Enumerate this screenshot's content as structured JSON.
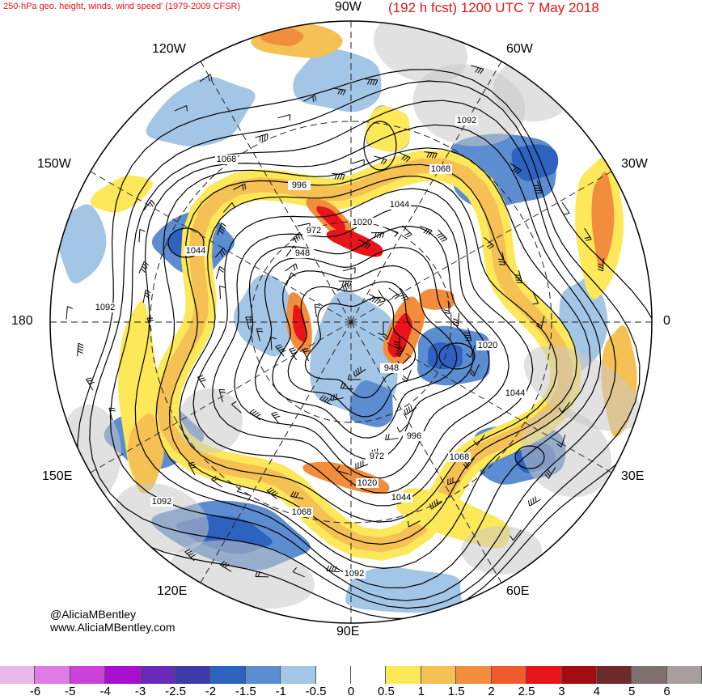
{
  "header": {
    "title_left": "250-hPa geo. height, winds, wind speed' (1979-2009 CFSR)",
    "title_right": "(192 h fcst) 1200 UTC 7 May 2018"
  },
  "longitude_labels": {
    "lon_90w": "90W",
    "lon_120w": "120W",
    "lon_60w": "60W",
    "lon_150w": "150W",
    "lon_30w": "30W",
    "lon_180": "180",
    "lon_0": "0",
    "lon_150e": "150E",
    "lon_30e": "30E",
    "lon_120e": "120E",
    "lon_60e": "60E",
    "lon_90e": "90E"
  },
  "contour_labels": [
    "1068",
    "996",
    "972",
    "948",
    "1020",
    "1044",
    "1092",
    "1068",
    "1044",
    "1092",
    "1020",
    "1044",
    "948",
    "996",
    "972",
    "1068",
    "1020",
    "1044",
    "1092",
    "1068",
    "1092"
  ],
  "credit": {
    "line1": "@AliciaMBentley",
    "line2": "www.AliciaMBentley.com"
  },
  "colorbar": {
    "colors": [
      "#ebb8ea",
      "#e07ae4",
      "#cc42d8",
      "#a80fcf",
      "#6b29b8",
      "#3b3aa8",
      "#2e62bf",
      "#5c8dd0",
      "#a3c6e7",
      "#ffffff",
      "#ffffff",
      "#fde85a",
      "#f5c054",
      "#f28d3d",
      "#f05a2c",
      "#e8141a",
      "#a30c12",
      "#6e2a2a",
      "#807070",
      "#a89e9e"
    ],
    "labels": [
      "-6",
      "-5",
      "-4",
      "-3",
      "-2.5",
      "-2",
      "-1.5",
      "-1",
      "-0.5",
      "0",
      "0.5",
      "1",
      "1.5",
      "2",
      "2.5",
      "3",
      "4",
      "5",
      "6"
    ]
  },
  "map_colors": {
    "positive_weak": "#fde85a",
    "positive_mid": "#f5c054",
    "positive_strong": "#f28d3d",
    "positive_max": "#e8141a",
    "negative_weak": "#a3c6e7",
    "negative_mid": "#5c8dd0",
    "negative_strong": "#2e62bf",
    "land": "#c8c8c8"
  }
}
